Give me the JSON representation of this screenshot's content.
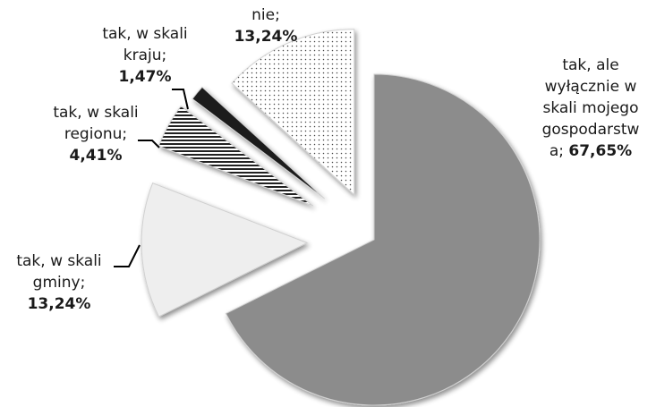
{
  "chart_data": {
    "type": "pie",
    "exploded": true,
    "slices": [
      {
        "id": "wlasne",
        "name": "tak, ale wyłącznie w skali mojego gospodarstwa",
        "value": 67.65,
        "pct_label": "67,65%",
        "fill": "#8c8c8c",
        "pattern": "solid"
      },
      {
        "id": "gmina",
        "name": "tak, w skali gminy",
        "value": 13.24,
        "pct_label": "13,24%",
        "fill": "#eeeeee",
        "pattern": "solid"
      },
      {
        "id": "region",
        "name": "tak, w skali regionu",
        "value": 4.41,
        "pct_label": "4,41%",
        "fill": "#ffffff",
        "pattern": "hstripes"
      },
      {
        "id": "kraj",
        "name": "tak, w skali kraju",
        "value": 1.47,
        "pct_label": "1,47%",
        "fill": "#1a1a1a",
        "pattern": "solid"
      },
      {
        "id": "nie",
        "name": "nie",
        "value": 13.24,
        "pct_label": "13,24%",
        "fill": "#ffffff",
        "pattern": "dots"
      }
    ]
  },
  "labels": {
    "wlasne": {
      "lines": [
        "tak, ale",
        "wyłącznie w",
        "skali mojego",
        "gospodarstw"
      ],
      "last_prefix": "a; ",
      "pct": "67,65%"
    },
    "gmina": {
      "lines": [
        "tak, w skali",
        "gminy;"
      ],
      "pct": "13,24%"
    },
    "region": {
      "lines": [
        "tak, w skali",
        "regionu;"
      ],
      "pct": "4,41%"
    },
    "kraj": {
      "lines": [
        "tak, w skali",
        "kraju;"
      ],
      "pct": "1,47%"
    },
    "nie": {
      "lines": [
        "nie;"
      ],
      "pct": "13,24%"
    }
  }
}
